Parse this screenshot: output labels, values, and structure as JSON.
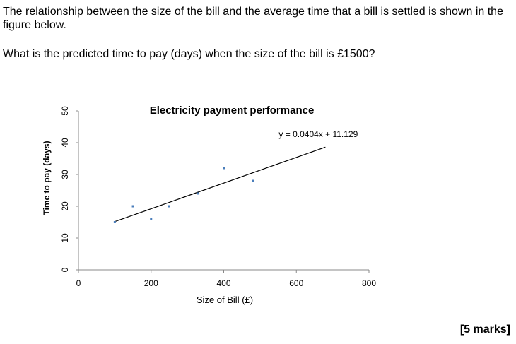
{
  "question": {
    "intro": "The relationship between the size of the bill and the average time that a bill is settled is shown in the figure below.",
    "prompt": "What is the predicted time to pay (days) when the size of the bill is £1500?",
    "marks": "[5 marks]"
  },
  "chart_data": {
    "type": "scatter",
    "title": "Electricity payment performance",
    "xlabel": "Size of Bill (£)",
    "ylabel": "Time to pay (days)",
    "xlim": [
      0,
      800
    ],
    "ylim": [
      0,
      50
    ],
    "xticks": [
      0,
      200,
      400,
      600,
      800
    ],
    "yticks": [
      0,
      10,
      20,
      30,
      40,
      50
    ],
    "grid": false,
    "series": [
      {
        "points": [
          {
            "x": 100,
            "y": 15
          },
          {
            "x": 150,
            "y": 20
          },
          {
            "x": 200,
            "y": 16
          },
          {
            "x": 250,
            "y": 20
          },
          {
            "x": 330,
            "y": 24
          },
          {
            "x": 400,
            "y": 32
          },
          {
            "x": 480,
            "y": 28
          }
        ],
        "color": "#4a7ebb"
      }
    ],
    "trendline": {
      "equation": "y = 0.0404x + 11.129",
      "slope": 0.0404,
      "intercept": 11.129,
      "x_start": 100,
      "x_end": 680,
      "color": "#000000"
    }
  }
}
